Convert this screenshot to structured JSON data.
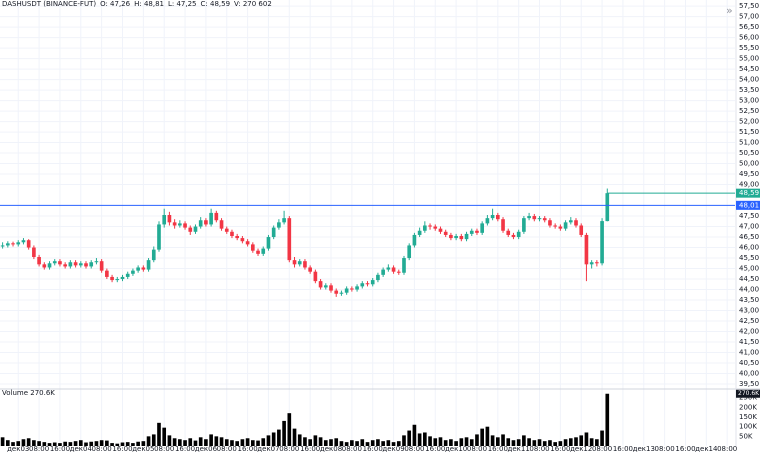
{
  "chart_data": {
    "type": "candlestick",
    "symbol": "DASHUSDT (BINANCE-FUT)",
    "legend_items": [
      "O: 47,26",
      "H: 48,81",
      "L: 47,25",
      "C: 48,59",
      "V: 270 602"
    ],
    "up_color": "#22ab94",
    "down_color": "#f23645",
    "ohlc": [
      [
        46.05,
        46.25,
        45.95,
        46.1
      ],
      [
        46.1,
        46.3,
        46.0,
        46.2
      ],
      [
        46.2,
        46.28,
        46.05,
        46.15
      ],
      [
        46.15,
        46.35,
        46.05,
        46.25
      ],
      [
        46.25,
        46.45,
        46.15,
        46.35
      ],
      [
        46.35,
        46.4,
        45.9,
        46.0
      ],
      [
        46.0,
        46.1,
        45.45,
        45.55
      ],
      [
        45.55,
        45.65,
        45.1,
        45.2
      ],
      [
        45.2,
        45.3,
        44.95,
        45.05
      ],
      [
        45.05,
        45.35,
        44.95,
        45.25
      ],
      [
        45.25,
        45.45,
        45.15,
        45.35
      ],
      [
        45.35,
        45.45,
        45.1,
        45.2
      ],
      [
        45.2,
        45.3,
        45.0,
        45.1
      ],
      [
        45.1,
        45.4,
        45.0,
        45.3
      ],
      [
        45.3,
        45.4,
        45.05,
        45.15
      ],
      [
        45.15,
        45.35,
        45.05,
        45.25
      ],
      [
        45.25,
        45.35,
        45.0,
        45.1
      ],
      [
        45.1,
        45.4,
        45.0,
        45.3
      ],
      [
        45.3,
        45.5,
        45.2,
        45.35
      ],
      [
        45.35,
        45.45,
        44.8,
        44.9
      ],
      [
        44.9,
        45.0,
        44.5,
        44.6
      ],
      [
        44.6,
        44.7,
        44.35,
        44.45
      ],
      [
        44.45,
        44.6,
        44.35,
        44.5
      ],
      [
        44.5,
        44.7,
        44.4,
        44.6
      ],
      [
        44.6,
        44.85,
        44.5,
        44.75
      ],
      [
        44.75,
        45.0,
        44.65,
        44.9
      ],
      [
        44.9,
        45.15,
        44.8,
        45.05
      ],
      [
        45.05,
        45.15,
        44.85,
        44.95
      ],
      [
        44.95,
        45.5,
        44.85,
        45.4
      ],
      [
        45.4,
        46.05,
        45.3,
        45.9
      ],
      [
        45.9,
        47.25,
        45.8,
        47.1
      ],
      [
        47.1,
        47.85,
        46.95,
        47.55
      ],
      [
        47.55,
        47.7,
        47.05,
        47.2
      ],
      [
        47.2,
        47.35,
        46.9,
        47.05
      ],
      [
        47.05,
        47.3,
        46.95,
        47.15
      ],
      [
        47.15,
        47.25,
        46.85,
        46.95
      ],
      [
        46.95,
        47.05,
        46.6,
        46.75
      ],
      [
        46.75,
        47.1,
        46.65,
        47.0
      ],
      [
        47.0,
        47.45,
        46.9,
        47.3
      ],
      [
        47.3,
        47.4,
        47.0,
        47.1
      ],
      [
        47.1,
        47.85,
        47.0,
        47.65
      ],
      [
        47.65,
        47.75,
        47.2,
        47.3
      ],
      [
        47.3,
        47.4,
        46.8,
        46.9
      ],
      [
        46.9,
        47.0,
        46.65,
        46.75
      ],
      [
        46.75,
        46.85,
        46.45,
        46.55
      ],
      [
        46.55,
        46.65,
        46.35,
        46.45
      ],
      [
        46.45,
        46.55,
        46.2,
        46.3
      ],
      [
        46.3,
        46.4,
        46.05,
        46.15
      ],
      [
        46.15,
        46.25,
        45.75,
        45.85
      ],
      [
        45.85,
        45.95,
        45.6,
        45.7
      ],
      [
        45.7,
        46.05,
        45.6,
        45.95
      ],
      [
        45.95,
        46.6,
        45.85,
        46.5
      ],
      [
        46.5,
        47.05,
        46.4,
        46.95
      ],
      [
        46.95,
        47.35,
        46.85,
        47.2
      ],
      [
        47.2,
        47.75,
        47.1,
        47.4
      ],
      [
        47.4,
        47.5,
        45.3,
        45.4
      ],
      [
        45.4,
        45.55,
        45.05,
        45.2
      ],
      [
        45.2,
        45.45,
        45.1,
        45.35
      ],
      [
        45.35,
        45.45,
        44.95,
        45.05
      ],
      [
        45.05,
        45.15,
        44.75,
        44.85
      ],
      [
        44.85,
        44.95,
        44.3,
        44.4
      ],
      [
        44.4,
        44.5,
        44.0,
        44.1
      ],
      [
        44.1,
        44.3,
        44.0,
        44.2
      ],
      [
        44.2,
        44.3,
        43.85,
        43.95
      ],
      [
        43.95,
        44.05,
        43.65,
        43.8
      ],
      [
        43.8,
        43.95,
        43.7,
        43.85
      ],
      [
        43.85,
        44.15,
        43.75,
        44.05
      ],
      [
        44.05,
        44.15,
        43.9,
        44.0
      ],
      [
        44.0,
        44.25,
        43.9,
        44.15
      ],
      [
        44.15,
        44.4,
        44.05,
        44.3
      ],
      [
        44.3,
        44.4,
        44.15,
        44.25
      ],
      [
        44.25,
        44.55,
        44.15,
        44.45
      ],
      [
        44.45,
        44.8,
        44.35,
        44.7
      ],
      [
        44.7,
        45.05,
        44.6,
        44.95
      ],
      [
        44.95,
        45.2,
        44.85,
        45.05
      ],
      [
        45.05,
        45.15,
        44.75,
        44.85
      ],
      [
        44.85,
        44.95,
        44.7,
        44.8
      ],
      [
        44.8,
        45.6,
        44.7,
        45.5
      ],
      [
        45.5,
        46.2,
        45.4,
        46.1
      ],
      [
        46.1,
        46.7,
        46.0,
        46.6
      ],
      [
        46.6,
        46.95,
        46.5,
        46.8
      ],
      [
        46.8,
        47.25,
        46.7,
        47.05
      ],
      [
        47.05,
        47.15,
        46.85,
        47.0
      ],
      [
        47.0,
        47.1,
        46.8,
        46.9
      ],
      [
        46.9,
        47.0,
        46.65,
        46.75
      ],
      [
        46.75,
        46.85,
        46.5,
        46.6
      ],
      [
        46.6,
        46.7,
        46.35,
        46.45
      ],
      [
        46.45,
        46.65,
        46.35,
        46.55
      ],
      [
        46.55,
        46.65,
        46.3,
        46.4
      ],
      [
        46.4,
        46.75,
        46.3,
        46.65
      ],
      [
        46.65,
        46.9,
        46.55,
        46.8
      ],
      [
        46.8,
        46.9,
        46.6,
        46.7
      ],
      [
        46.7,
        47.25,
        46.6,
        47.15
      ],
      [
        47.15,
        47.55,
        47.05,
        47.4
      ],
      [
        47.4,
        47.85,
        47.3,
        47.55
      ],
      [
        47.55,
        47.65,
        47.25,
        47.35
      ],
      [
        47.35,
        47.45,
        46.7,
        46.8
      ],
      [
        46.8,
        46.9,
        46.5,
        46.6
      ],
      [
        46.6,
        46.7,
        46.4,
        46.5
      ],
      [
        46.5,
        46.85,
        46.4,
        46.75
      ],
      [
        46.75,
        47.5,
        46.65,
        47.4
      ],
      [
        47.4,
        47.65,
        47.3,
        47.5
      ],
      [
        47.5,
        47.6,
        47.25,
        47.35
      ],
      [
        47.35,
        47.5,
        47.25,
        47.4
      ],
      [
        47.4,
        47.5,
        47.2,
        47.3
      ],
      [
        47.3,
        47.4,
        46.95,
        47.05
      ],
      [
        47.05,
        47.15,
        46.9,
        47.0
      ],
      [
        47.0,
        47.1,
        46.8,
        46.9
      ],
      [
        46.9,
        47.3,
        46.8,
        47.2
      ],
      [
        47.2,
        47.45,
        47.1,
        47.3
      ],
      [
        47.3,
        47.4,
        46.95,
        47.05
      ],
      [
        47.05,
        47.15,
        46.5,
        46.6
      ],
      [
        46.6,
        46.7,
        44.4,
        45.2
      ],
      [
        45.2,
        45.4,
        45.0,
        45.3
      ],
      [
        45.3,
        45.4,
        45.1,
        45.25
      ],
      [
        45.25,
        47.4,
        45.15,
        47.26
      ],
      [
        47.26,
        48.81,
        47.25,
        48.59
      ]
    ],
    "xlim": [
      -0.5,
      140.5
    ],
    "xticks": [
      {
        "value": 3,
        "label": "дек03"
      },
      {
        "value": 7,
        "label": "08:00"
      },
      {
        "value": 11,
        "label": "16:00"
      },
      {
        "value": 15,
        "label": "дек04"
      },
      {
        "value": 19,
        "label": "08:00"
      },
      {
        "value": 23,
        "label": "16:00"
      },
      {
        "value": 27,
        "label": "дек05"
      },
      {
        "value": 31,
        "label": "08:00"
      },
      {
        "value": 35,
        "label": "16:00"
      },
      {
        "value": 39,
        "label": "дек06"
      },
      {
        "value": 43,
        "label": "08:00"
      },
      {
        "value": 47,
        "label": "16:00"
      },
      {
        "value": 51,
        "label": "дек07"
      },
      {
        "value": 55,
        "label": "08:00"
      },
      {
        "value": 59,
        "label": "16:00"
      },
      {
        "value": 63,
        "label": "дек08"
      },
      {
        "value": 67,
        "label": "08:00"
      },
      {
        "value": 71,
        "label": "16:00"
      },
      {
        "value": 75,
        "label": "дек09"
      },
      {
        "value": 79,
        "label": "08:00"
      },
      {
        "value": 83,
        "label": "16:00"
      },
      {
        "value": 87,
        "label": "дек10"
      },
      {
        "value": 91,
        "label": "08:00"
      },
      {
        "value": 95,
        "label": "16:00"
      },
      {
        "value": 99,
        "label": "дек11"
      },
      {
        "value": 103,
        "label": "08:00"
      },
      {
        "value": 107,
        "label": "16:00"
      },
      {
        "value": 111,
        "label": "дек12"
      },
      {
        "value": 115,
        "label": "08:00"
      },
      {
        "value": 119,
        "label": "16:00"
      },
      {
        "value": 123,
        "label": "дек13"
      },
      {
        "value": 127,
        "label": "08:00"
      },
      {
        "value": 131,
        "label": "16:00"
      },
      {
        "value": 135,
        "label": "дек14"
      },
      {
        "value": 139,
        "label": "08:00"
      }
    ],
    "ylim": [
      39.31,
      57.79
    ],
    "yticks": [
      {
        "value": 39.5,
        "label": "39,50"
      },
      {
        "value": 40,
        "label": "40,00"
      },
      {
        "value": 40.5,
        "label": "40,50"
      },
      {
        "value": 41,
        "label": "41,00"
      },
      {
        "value": 41.5,
        "label": "41,50"
      },
      {
        "value": 42,
        "label": "42,00"
      },
      {
        "value": 42.5,
        "label": "42,50"
      },
      {
        "value": 43,
        "label": "43,00"
      },
      {
        "value": 43.5,
        "label": "43,50"
      },
      {
        "value": 44,
        "label": "44,00"
      },
      {
        "value": 44.5,
        "label": "44,50"
      },
      {
        "value": 45,
        "label": "45,00"
      },
      {
        "value": 45.5,
        "label": "45,50"
      },
      {
        "value": 46,
        "label": "46,00"
      },
      {
        "value": 46.5,
        "label": "46,50"
      },
      {
        "value": 47,
        "label": "47,00"
      },
      {
        "value": 47.5,
        "label": "47,50"
      },
      {
        "value": 49,
        "label": "49,00"
      },
      {
        "value": 49.5,
        "label": "49,50"
      },
      {
        "value": 50,
        "label": "50,00"
      },
      {
        "value": 50.5,
        "label": "50,50"
      },
      {
        "value": 51,
        "label": "51,00"
      },
      {
        "value": 51.5,
        "label": "51,50"
      },
      {
        "value": 52,
        "label": "52,00"
      },
      {
        "value": 52.5,
        "label": "52,50"
      },
      {
        "value": 53,
        "label": "53,00"
      },
      {
        "value": 53.5,
        "label": "53,50"
      },
      {
        "value": 54,
        "label": "54,00"
      },
      {
        "value": 54.5,
        "label": "54,50"
      },
      {
        "value": 55,
        "label": "55,00"
      },
      {
        "value": 55.5,
        "label": "55,50"
      },
      {
        "value": 56,
        "label": "56,00"
      },
      {
        "value": 56.5,
        "label": "56,50"
      },
      {
        "value": 57,
        "label": "57,00"
      },
      {
        "value": 57.5,
        "label": "57,50"
      }
    ],
    "grid": true,
    "price_line": {
      "value": 48.01,
      "label": "48,01",
      "color": "#2962ff"
    },
    "last_price": {
      "value": 48.59,
      "label": "48,59",
      "color": "#22ab94"
    },
    "volume": {
      "title": "Volume 270.6K",
      "color": "#000000",
      "values": [
        45000,
        30000,
        20000,
        25000,
        35000,
        40000,
        30000,
        25000,
        20000,
        15000,
        18000,
        15000,
        22000,
        20000,
        25000,
        30000,
        18000,
        22000,
        25000,
        30000,
        28000,
        15000,
        12000,
        18000,
        20000,
        15000,
        22000,
        25000,
        50000,
        60000,
        120000,
        95000,
        55000,
        40000,
        35000,
        30000,
        40000,
        28000,
        45000,
        35000,
        60000,
        50000,
        45000,
        35000,
        30000,
        25000,
        35000,
        40000,
        30000,
        28000,
        40000,
        55000,
        70000,
        85000,
        130000,
        170000,
        90000,
        60000,
        45000,
        35000,
        55000,
        45000,
        30000,
        35000,
        40000,
        25000,
        20000,
        30000,
        25000,
        35000,
        20000,
        30000,
        35000,
        25000,
        30000,
        20000,
        25000,
        55000,
        80000,
        110000,
        65000,
        70000,
        50000,
        40000,
        45000,
        30000,
        35000,
        25000,
        40000,
        45000,
        35000,
        60000,
        90000,
        100000,
        55000,
        45000,
        60000,
        40000,
        30000,
        35000,
        55000,
        40000,
        30000,
        35000,
        25000,
        30000,
        20000,
        25000,
        35000,
        40000,
        45000,
        55000,
        70000,
        40000,
        35000,
        80000,
        270602
      ],
      "ylim": [
        0,
        290000
      ],
      "yticks": [
        {
          "value": 50000,
          "label": "50K"
        },
        {
          "value": 100000,
          "label": "100K"
        },
        {
          "value": 150000,
          "label": "150K"
        },
        {
          "value": 200000,
          "label": "200K"
        },
        {
          "value": 250000,
          "label": "250K"
        }
      ],
      "last_label": {
        "value": 270602,
        "label": "270.6K"
      }
    }
  }
}
